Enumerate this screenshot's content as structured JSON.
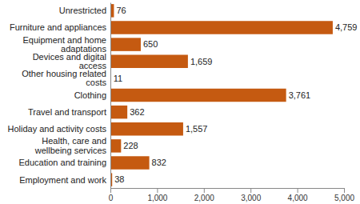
{
  "chart_data": {
    "type": "bar",
    "orientation": "horizontal",
    "categories": [
      "Unrestricted",
      "Furniture and appliances",
      "Equipment and home adaptations",
      "Devices and digital access",
      "Other housing related costs",
      "Clothing",
      "Travel and transport",
      "Holiday and activity costs",
      "Health, care and wellbeing services",
      "Education and training",
      "Employment and work"
    ],
    "values": [
      76,
      4759,
      650,
      1659,
      11,
      3761,
      362,
      1557,
      228,
      832,
      38
    ],
    "value_labels": [
      "76",
      "4,759",
      "650",
      "1,659",
      "11",
      "3,761",
      "362",
      "1,557",
      "228",
      "832",
      "38"
    ],
    "color": "#c55a11",
    "xlim": [
      0,
      5000
    ],
    "xticks": [
      0,
      {
        "value": 1000,
        "label": "1,000"
      },
      {
        "value": 2000,
        "label": "2,000"
      },
      {
        "value": 3000,
        "label": "3,000"
      },
      {
        "value": 4000,
        "label": "4,000"
      },
      {
        "value": 5000,
        "label": "5,000"
      }
    ],
    "data_labels": true,
    "grid": false
  }
}
